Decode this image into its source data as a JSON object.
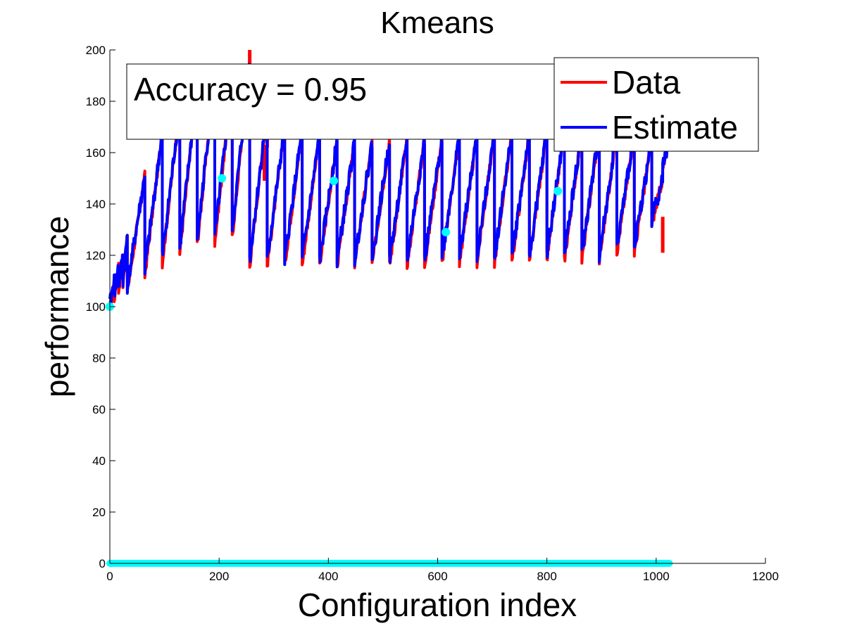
{
  "chart_data": {
    "type": "line",
    "title": "Kmeans",
    "xlabel": "Configuration index",
    "ylabel": "performance",
    "xlim": [
      0,
      1200
    ],
    "ylim": [
      0,
      200
    ],
    "xticks": [
      0,
      200,
      400,
      600,
      800,
      1000,
      1200
    ],
    "yticks": [
      0,
      20,
      40,
      60,
      80,
      100,
      120,
      140,
      160,
      180,
      200
    ],
    "grid": false,
    "annotation": "Accuracy = 0.95",
    "legend": {
      "position": "top-right",
      "entries": [
        {
          "label": "Data",
          "color": "#ff0000"
        },
        {
          "label": "Estimate",
          "color": "#0000ff"
        }
      ]
    },
    "sawtooth_segments": [
      {
        "x0": 0,
        "x1": 8,
        "y0": 101,
        "y1": 110
      },
      {
        "x0": 8,
        "x1": 16,
        "y0": 105,
        "y1": 116
      },
      {
        "x0": 16,
        "x1": 24,
        "y0": 108,
        "y1": 120
      },
      {
        "x0": 24,
        "x1": 32,
        "y0": 110,
        "y1": 128
      },
      {
        "x0": 32,
        "x1": 64,
        "y0": 108,
        "y1": 151
      },
      {
        "x0": 64,
        "x1": 96,
        "y0": 114,
        "y1": 168
      },
      {
        "x0": 96,
        "x1": 128,
        "y0": 119,
        "y1": 178
      },
      {
        "x0": 128,
        "x1": 160,
        "y0": 123,
        "y1": 186
      },
      {
        "x0": 160,
        "x1": 192,
        "y0": 126,
        "y1": 191
      },
      {
        "x0": 192,
        "x1": 224,
        "y0": 127,
        "y1": 188
      },
      {
        "x0": 224,
        "x1": 256,
        "y0": 129,
        "y1": 196
      },
      {
        "x0": 256,
        "x1": 288,
        "y0": 118,
        "y1": 177
      },
      {
        "x0": 288,
        "x1": 320,
        "y0": 118,
        "y1": 170
      },
      {
        "x0": 320,
        "x1": 352,
        "y0": 118,
        "y1": 169
      },
      {
        "x0": 352,
        "x1": 384,
        "y0": 118,
        "y1": 167
      },
      {
        "x0": 384,
        "x1": 416,
        "y0": 118,
        "y1": 165
      },
      {
        "x0": 416,
        "x1": 448,
        "y0": 118,
        "y1": 164
      },
      {
        "x0": 448,
        "x1": 480,
        "y0": 118,
        "y1": 164
      },
      {
        "x0": 480,
        "x1": 512,
        "y0": 118,
        "y1": 165
      },
      {
        "x0": 512,
        "x1": 544,
        "y0": 118,
        "y1": 165
      },
      {
        "x0": 544,
        "x1": 576,
        "y0": 118,
        "y1": 165
      },
      {
        "x0": 576,
        "x1": 608,
        "y0": 118,
        "y1": 166
      },
      {
        "x0": 608,
        "x1": 640,
        "y0": 119,
        "y1": 167
      },
      {
        "x0": 640,
        "x1": 672,
        "y0": 119,
        "y1": 167
      },
      {
        "x0": 672,
        "x1": 704,
        "y0": 119,
        "y1": 168
      },
      {
        "x0": 704,
        "x1": 736,
        "y0": 119,
        "y1": 168
      },
      {
        "x0": 736,
        "x1": 768,
        "y0": 119,
        "y1": 168
      },
      {
        "x0": 768,
        "x1": 800,
        "y0": 119,
        "y1": 169
      },
      {
        "x0": 800,
        "x1": 832,
        "y0": 120,
        "y1": 169
      },
      {
        "x0": 832,
        "x1": 864,
        "y0": 120,
        "y1": 169
      },
      {
        "x0": 864,
        "x1": 896,
        "y0": 120,
        "y1": 169
      },
      {
        "x0": 896,
        "x1": 928,
        "y0": 120,
        "y1": 168
      },
      {
        "x0": 928,
        "x1": 960,
        "y0": 123,
        "y1": 168
      },
      {
        "x0": 960,
        "x1": 992,
        "y0": 123,
        "y1": 165
      },
      {
        "x0": 992,
        "x1": 1012,
        "y0": 134,
        "y1": 150
      },
      {
        "x0": 1012,
        "x1": 1024,
        "y0": 155,
        "y1": 165
      }
    ],
    "data_peaks_extra": [
      {
        "x": 256,
        "y": 200
      },
      {
        "x": 283,
        "y": 163
      },
      {
        "x": 288,
        "y": 176
      },
      {
        "x": 1012,
        "y": 135
      }
    ],
    "sample_points": [
      {
        "x": 0,
        "y": 100
      },
      {
        "x": 205,
        "y": 150
      },
      {
        "x": 410,
        "y": 149
      },
      {
        "x": 615,
        "y": 129
      },
      {
        "x": 820,
        "y": 145
      }
    ],
    "baseline_points": {
      "x_start": 0,
      "x_end": 1024,
      "y": 0
    }
  }
}
